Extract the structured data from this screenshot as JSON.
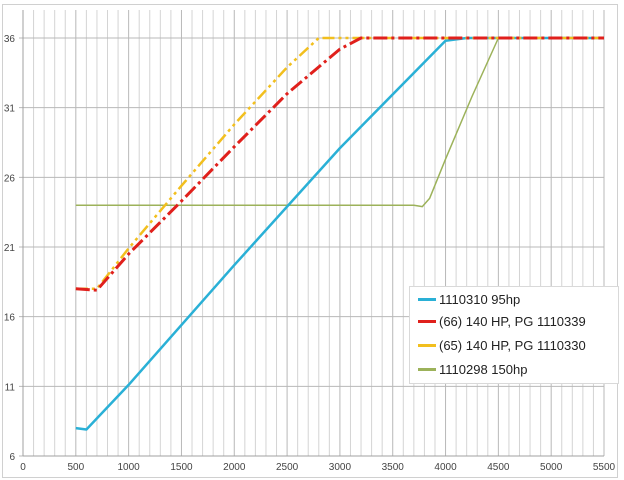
{
  "chart_data": {
    "type": "line",
    "title": "",
    "xlabel": "",
    "ylabel": "",
    "xlim": [
      0,
      5500
    ],
    "ylim": [
      6,
      36
    ],
    "x_ticks": [
      "0",
      "500",
      "1000",
      "1500",
      "2000",
      "2500",
      "3000",
      "3500",
      "4000",
      "4500",
      "5000",
      "5500"
    ],
    "y_ticks": [
      "6",
      "11",
      "16",
      "21",
      "26",
      "31",
      "36"
    ],
    "grid": true,
    "legend_position": "lower right (inside plot)",
    "series": [
      {
        "name": "1110310 95hp",
        "color": "#2ab0d6",
        "style": "solid",
        "points": [
          [
            500,
            8.0
          ],
          [
            600,
            7.9
          ],
          [
            700,
            8.7
          ],
          [
            1000,
            11.1
          ],
          [
            2000,
            19.7
          ],
          [
            3000,
            28.1
          ],
          [
            4000,
            35.8
          ],
          [
            4200,
            36.0
          ],
          [
            4500,
            36.0
          ],
          [
            5500,
            36.0
          ]
        ]
      },
      {
        "name": "(66) 140 HP, PG 1110339",
        "color": "#e0201c",
        "style": "dash-dot",
        "points": [
          [
            500,
            18.0
          ],
          [
            700,
            17.9
          ],
          [
            1000,
            20.5
          ],
          [
            1500,
            24.3
          ],
          [
            2000,
            28.2
          ],
          [
            2500,
            32.0
          ],
          [
            3000,
            35.2
          ],
          [
            3200,
            36.0
          ],
          [
            4000,
            36.0
          ],
          [
            5500,
            36.0
          ]
        ]
      },
      {
        "name": "(65) 140 HP, PG 1110330",
        "color": "#f2bf1e",
        "style": "dash-dot-dot",
        "points": [
          [
            500,
            18.0
          ],
          [
            700,
            18.0
          ],
          [
            1000,
            20.9
          ],
          [
            1500,
            25.4
          ],
          [
            2000,
            29.8
          ],
          [
            2500,
            33.9
          ],
          [
            2800,
            36.0
          ],
          [
            4000,
            36.0
          ],
          [
            5500,
            36.0
          ]
        ]
      },
      {
        "name": "1110298 150hp",
        "color": "#9cb25a",
        "style": "solid-thin",
        "points": [
          [
            500,
            24.0
          ],
          [
            1000,
            24.0
          ],
          [
            2000,
            24.0
          ],
          [
            3000,
            24.0
          ],
          [
            3700,
            24.0
          ],
          [
            3780,
            23.9
          ],
          [
            3850,
            24.5
          ],
          [
            4000,
            27.3
          ],
          [
            4250,
            31.8
          ],
          [
            4500,
            36.0
          ],
          [
            5500,
            36.0
          ]
        ]
      }
    ]
  },
  "legend": {
    "items": [
      {
        "label": "1110310 95hp",
        "color": "#2ab0d6"
      },
      {
        "label": "(66) 140 HP, PG 1110339",
        "color": "#e0201c"
      },
      {
        "label": "(65) 140 HP, PG 1110330",
        "color": "#f2bf1e"
      },
      {
        "label": "1110298 150hp",
        "color": "#9cb25a"
      }
    ]
  }
}
